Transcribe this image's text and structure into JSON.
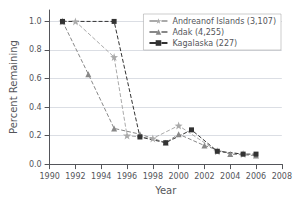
{
  "chart_data": {
    "type": "line",
    "xlabel": "Year",
    "ylabel": "Percent Remaining",
    "xlim": [
      1990,
      2008
    ],
    "xticks": [
      1990,
      1992,
      1994,
      1996,
      1998,
      2000,
      2002,
      2004,
      2006,
      2008
    ],
    "ylim": [
      0.0,
      1.08
    ],
    "yticks": [
      {
        "value": 0.0,
        "label": "0.0"
      },
      0.2,
      0.4,
      0.6,
      0.8,
      {
        "value": 1.0,
        "label": "1.0"
      }
    ],
    "grid": "y",
    "legend": "upper right",
    "series": [
      {
        "name": "Andreanof Islands (3,107)",
        "color": "#aaaaaa",
        "marker": "star",
        "line_style": "dashed",
        "x": [
          1991,
          1992,
          1995,
          1996,
          1998,
          2000,
          2003,
          2005
        ],
        "values": [
          1.0,
          1.0,
          0.75,
          0.2,
          0.18,
          0.27,
          0.09,
          0.07
        ]
      },
      {
        "name": "Adak (4,255)",
        "color": "#888888",
        "marker": "triangle",
        "line_style": "dashed",
        "x": [
          1991,
          1993,
          1995,
          1997,
          1999,
          2000,
          2002,
          2004,
          2006
        ],
        "values": [
          1.0,
          0.63,
          0.25,
          0.21,
          0.15,
          0.21,
          0.13,
          0.07,
          0.06
        ]
      },
      {
        "name": "Kagalaska (227)",
        "color": "#333333",
        "marker": "square",
        "line_style": "dashed",
        "x": [
          1991,
          1995,
          1997,
          1999,
          2001,
          2003,
          2005,
          2006
        ],
        "values": [
          1.0,
          1.0,
          0.19,
          0.15,
          0.24,
          0.09,
          0.07,
          0.07
        ]
      }
    ]
  }
}
